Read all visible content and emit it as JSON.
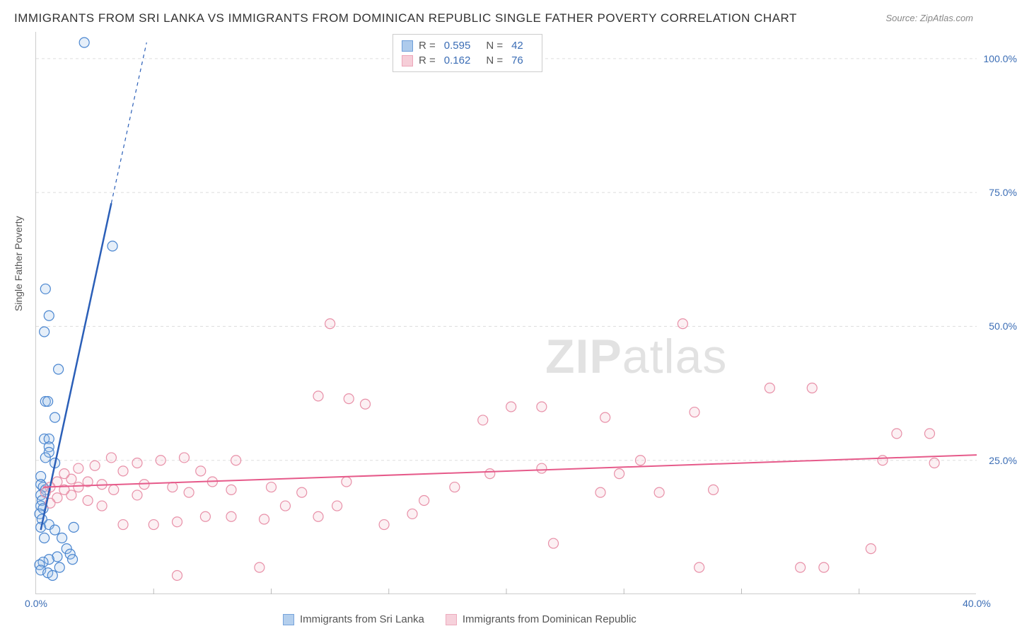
{
  "title": "IMMIGRANTS FROM SRI LANKA VS IMMIGRANTS FROM DOMINICAN REPUBLIC SINGLE FATHER POVERTY CORRELATION CHART",
  "source": "Source: ZipAtlas.com",
  "y_axis_label": "Single Father Poverty",
  "watermark_part1": "ZIP",
  "watermark_part2": "atlas",
  "chart": {
    "type": "scatter",
    "background_color": "#ffffff",
    "grid_color": "#dddddd",
    "axis_color": "#cccccc",
    "xlim": [
      0,
      40
    ],
    "ylim": [
      0,
      105
    ],
    "x_ticks": [
      0,
      5,
      10,
      15,
      20,
      25,
      30,
      35,
      40
    ],
    "x_tick_labels": [
      "0.0%",
      "",
      "",
      "",
      "",
      "",
      "",
      "",
      "40.0%"
    ],
    "y_ticks": [
      25,
      50,
      75,
      100
    ],
    "y_tick_labels": [
      "25.0%",
      "50.0%",
      "75.0%",
      "100.0%"
    ],
    "tick_label_color": "#3b6db5",
    "tick_fontsize": 14,
    "marker_radius": 7,
    "marker_stroke_width": 1.2,
    "marker_fill_opacity": 0.25,
    "series": [
      {
        "name": "Immigrants from Sri Lanka",
        "color_stroke": "#4a86d0",
        "color_fill": "#9bbfe8",
        "R": "0.595",
        "N": "42",
        "trend_line": {
          "x1": 0.2,
          "y1": 12,
          "x2": 3.2,
          "y2": 73
        },
        "trend_line_dashed": {
          "x1": 3.2,
          "y1": 73,
          "x2": 4.7,
          "y2": 103
        },
        "trend_color": "#2b5fb8",
        "trend_width": 2.5,
        "points": [
          [
            2.05,
            103
          ],
          [
            0.4,
            57
          ],
          [
            0.55,
            52
          ],
          [
            0.35,
            49
          ],
          [
            3.25,
            65
          ],
          [
            0.95,
            42
          ],
          [
            0.4,
            36
          ],
          [
            0.5,
            36
          ],
          [
            0.8,
            33
          ],
          [
            0.35,
            29
          ],
          [
            0.55,
            29
          ],
          [
            0.55,
            27.5
          ],
          [
            0.55,
            26.5
          ],
          [
            0.4,
            25.5
          ],
          [
            0.8,
            24.5
          ],
          [
            0.2,
            22
          ],
          [
            0.2,
            20.5
          ],
          [
            0.3,
            20
          ],
          [
            0.4,
            19.5
          ],
          [
            0.2,
            18.5
          ],
          [
            0.25,
            17.5
          ],
          [
            0.2,
            16.5
          ],
          [
            0.3,
            16
          ],
          [
            0.15,
            15
          ],
          [
            0.25,
            14
          ],
          [
            0.2,
            12.5
          ],
          [
            0.55,
            13
          ],
          [
            0.8,
            12
          ],
          [
            0.35,
            10.5
          ],
          [
            1.6,
            12.5
          ],
          [
            1.1,
            10.5
          ],
          [
            1.3,
            8.5
          ],
          [
            1.45,
            7.5
          ],
          [
            1.55,
            6.5
          ],
          [
            0.9,
            7
          ],
          [
            0.55,
            6.5
          ],
          [
            0.3,
            6
          ],
          [
            0.15,
            5.5
          ],
          [
            0.2,
            4.5
          ],
          [
            0.5,
            4
          ],
          [
            0.7,
            3.5
          ],
          [
            1.0,
            5
          ]
        ]
      },
      {
        "name": "Immigrants from Dominican Republic",
        "color_stroke": "#e890a8",
        "color_fill": "#f4c2cf",
        "R": "0.162",
        "N": "76",
        "trend_line": {
          "x1": 0.3,
          "y1": 20,
          "x2": 40,
          "y2": 26
        },
        "trend_color": "#e65a8a",
        "trend_width": 2,
        "points": [
          [
            12.5,
            50.5
          ],
          [
            27.5,
            50.5
          ],
          [
            31.2,
            38.5
          ],
          [
            33,
            38.5
          ],
          [
            36.6,
            30
          ],
          [
            38,
            30
          ],
          [
            36,
            25
          ],
          [
            38.2,
            24.5
          ],
          [
            35.5,
            8.5
          ],
          [
            32.5,
            5
          ],
          [
            33.5,
            5
          ],
          [
            28.2,
            5
          ],
          [
            26.5,
            19
          ],
          [
            28.8,
            19.5
          ],
          [
            28,
            34
          ],
          [
            24.8,
            22.5
          ],
          [
            25.7,
            25
          ],
          [
            24,
            19
          ],
          [
            24.2,
            33
          ],
          [
            22,
            9.5
          ],
          [
            21.5,
            23.5
          ],
          [
            21.5,
            35
          ],
          [
            20.2,
            35
          ],
          [
            19.3,
            22.5
          ],
          [
            19,
            32.5
          ],
          [
            16.5,
            17.5
          ],
          [
            17.8,
            20
          ],
          [
            16,
            15
          ],
          [
            14.8,
            13
          ],
          [
            14,
            35.5
          ],
          [
            13.3,
            36.5
          ],
          [
            13.2,
            21
          ],
          [
            12,
            14.5
          ],
          [
            12.8,
            16.5
          ],
          [
            12,
            37
          ],
          [
            11.3,
            19
          ],
          [
            10.6,
            16.5
          ],
          [
            10,
            20
          ],
          [
            9.7,
            14
          ],
          [
            9.5,
            5
          ],
          [
            8.3,
            19.5
          ],
          [
            8.5,
            25
          ],
          [
            8.3,
            14.5
          ],
          [
            7.5,
            21
          ],
          [
            7.2,
            14.5
          ],
          [
            7,
            23
          ],
          [
            6.5,
            19
          ],
          [
            6,
            13.5
          ],
          [
            6.3,
            25.5
          ],
          [
            5.8,
            20
          ],
          [
            6,
            3.5
          ],
          [
            5.3,
            25
          ],
          [
            5,
            13
          ],
          [
            4.6,
            20.5
          ],
          [
            4.3,
            24.5
          ],
          [
            4.3,
            18.5
          ],
          [
            3.7,
            23
          ],
          [
            3.7,
            13
          ],
          [
            3.3,
            19.5
          ],
          [
            3.2,
            25.5
          ],
          [
            2.8,
            20.5
          ],
          [
            2.8,
            16.5
          ],
          [
            2.5,
            24
          ],
          [
            2.2,
            21
          ],
          [
            2.2,
            17.5
          ],
          [
            1.8,
            20
          ],
          [
            1.8,
            23.5
          ],
          [
            1.5,
            18.5
          ],
          [
            1.5,
            21.5
          ],
          [
            1.2,
            19.5
          ],
          [
            1.2,
            22.5
          ],
          [
            0.9,
            21
          ],
          [
            0.9,
            18
          ],
          [
            0.6,
            20
          ],
          [
            0.6,
            17
          ],
          [
            0.4,
            19
          ]
        ]
      }
    ]
  },
  "stats_legend_labels": {
    "R": "R =",
    "N": "N ="
  },
  "bottom_legend": [
    {
      "label": "Immigrants from Sri Lanka",
      "stroke": "#4a86d0",
      "fill": "#9bbfe8"
    },
    {
      "label": "Immigrants from Dominican Republic",
      "stroke": "#e890a8",
      "fill": "#f4c2cf"
    }
  ]
}
